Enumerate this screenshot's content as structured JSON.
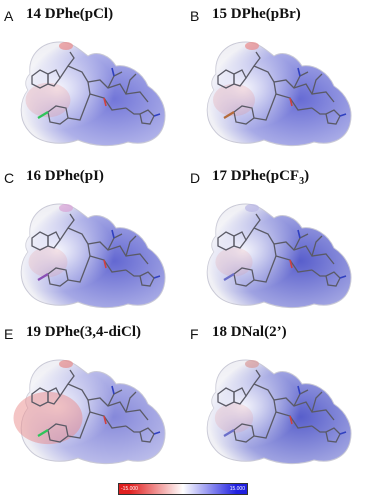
{
  "panels": [
    {
      "letter": "A",
      "title": "14 DPhe(pCl)",
      "tint": "#6b6fd6",
      "warm": 0.15,
      "halo": "#e98a8a",
      "ring": "#2ec45a"
    },
    {
      "letter": "B",
      "title": "15 DPhe(pBr)",
      "tint": "#5f64d2",
      "warm": 0.1,
      "halo": "#e98a8a",
      "ring": "#b56b3a"
    },
    {
      "letter": "C",
      "title": "16 DPhe(pI)",
      "tint": "#5b60cf",
      "warm": 0.05,
      "halo": "#d9a2d6",
      "ring": "#8a4fb5"
    },
    {
      "letter": "D",
      "title": "17 DPhe(pCF",
      "sub": "3",
      "tail": ")",
      "tint": "#5056c9",
      "warm": 0.02,
      "halo": "#b9b6e6",
      "ring": "#6a6fc9"
    },
    {
      "letter": "E",
      "title": "19 DPhe(3,4-diCl)",
      "tint": "#7f82d8",
      "warm": 0.55,
      "halo": "#e58a8a",
      "ring": "#2ec45a"
    },
    {
      "letter": "F",
      "title": "18 DNal(2’)",
      "tint": "#4f56c8",
      "warm": 0.04,
      "halo": "#d99a9a",
      "ring": "#6a6fc9"
    }
  ],
  "colorbar": {
    "low": "-15.000",
    "high": "15.000",
    "colors": [
      "#e02020",
      "#ffffff",
      "#2020e0"
    ]
  }
}
